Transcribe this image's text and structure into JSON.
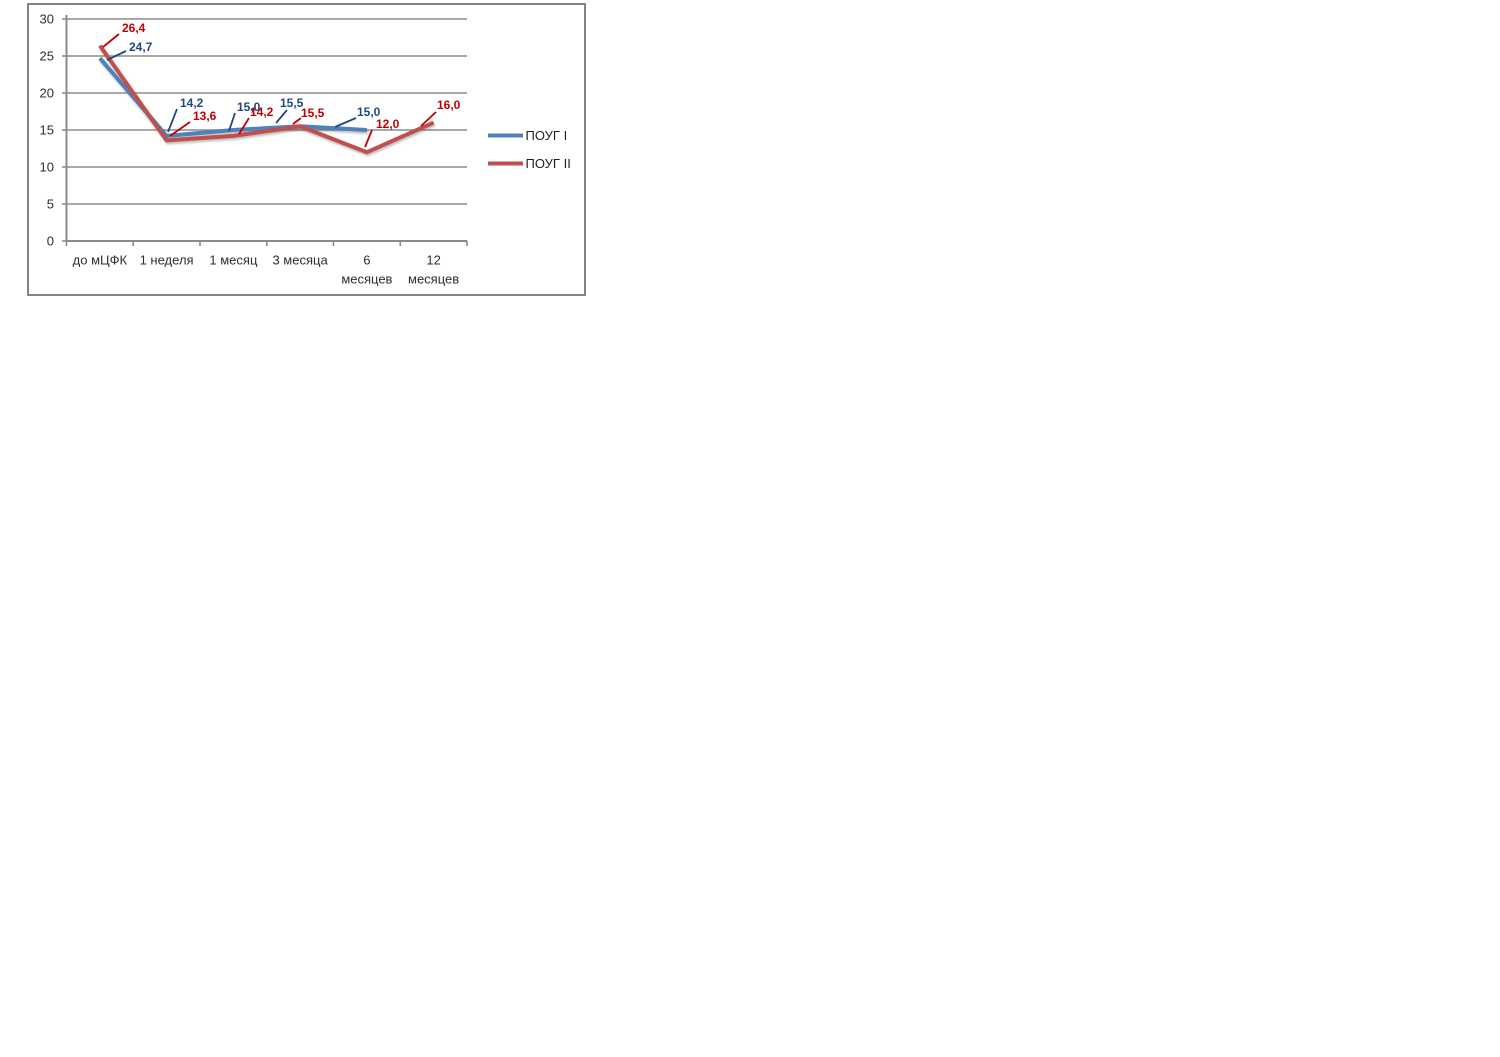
{
  "chart_data": {
    "type": "line",
    "title": "",
    "categories": [
      "до мЦФК",
      "1 неделя",
      "1 месяц",
      "3 месяца",
      "6 месяцев",
      "12 месяцев"
    ],
    "series": [
      {
        "name": "ПОУГ I",
        "color": "#4F81BD",
        "label_color": "#1F497D",
        "values": [
          24.7,
          14.2,
          15.0,
          15.5,
          15.0,
          null
        ]
      },
      {
        "name": "ПОУГ II",
        "color": "#C0504D",
        "label_color": "#C00000",
        "values": [
          26.4,
          13.6,
          14.2,
          15.5,
          12.0,
          16.0
        ]
      }
    ],
    "y_axis": {
      "min": 0,
      "max": 30,
      "step": 5,
      "ticks": [
        "30",
        "25",
        "20",
        "15",
        "10",
        "5",
        "0"
      ]
    },
    "x_label_lines": [
      [
        "до мЦФК"
      ],
      [
        "1 неделя"
      ],
      [
        "1 месяц"
      ],
      [
        "3 месяца"
      ],
      [
        "6",
        "месяцев"
      ],
      [
        "12",
        "месяцев"
      ]
    ],
    "point_labels": {
      "b0": "24,7",
      "b1": "14,2",
      "b2": "15,0",
      "b3": "15,5",
      "b4": "15,0",
      "r0": "26,4",
      "r1": "13,6",
      "r2": "14,2",
      "r3": "15,5",
      "r4": "12,0",
      "r5": "16,0"
    },
    "legend": {
      "position": "right",
      "entries": [
        "ПОУГ I",
        "ПОУГ II"
      ]
    },
    "grid": true,
    "decimal_separator": ","
  }
}
